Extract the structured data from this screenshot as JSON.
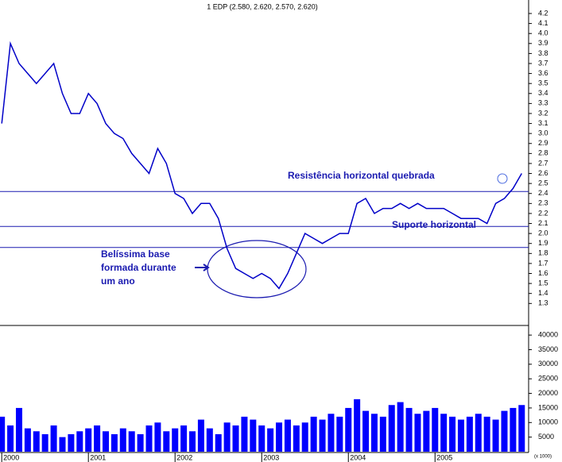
{
  "chart_data": [
    {
      "type": "line",
      "title": "1 EDP (2.580, 2.620, 2.570, 2.620)",
      "color": "#0000c8",
      "x": [
        2000.0,
        2000.1,
        2000.2,
        2000.3,
        2000.4,
        2000.5,
        2000.6,
        2000.7,
        2000.8,
        2000.9,
        2001.0,
        2001.1,
        2001.2,
        2001.3,
        2001.4,
        2001.5,
        2001.6,
        2001.7,
        2001.8,
        2001.9,
        2002.0,
        2002.1,
        2002.2,
        2002.3,
        2002.4,
        2002.5,
        2002.6,
        2002.7,
        2002.8,
        2002.9,
        2003.0,
        2003.1,
        2003.2,
        2003.3,
        2003.4,
        2003.5,
        2003.6,
        2003.7,
        2003.8,
        2003.9,
        2004.0,
        2004.1,
        2004.2,
        2004.3,
        2004.4,
        2004.5,
        2004.6,
        2004.7,
        2004.8,
        2004.9,
        2005.0,
        2005.1,
        2005.2,
        2005.3,
        2005.4,
        2005.5,
        2005.6,
        2005.7,
        2005.8,
        2005.9,
        2006.0
      ],
      "values": [
        3.1,
        3.9,
        3.7,
        3.6,
        3.5,
        3.6,
        3.7,
        3.4,
        3.2,
        3.2,
        3.4,
        3.3,
        3.1,
        3.0,
        2.95,
        2.8,
        2.7,
        2.6,
        2.85,
        2.7,
        2.4,
        2.35,
        2.2,
        2.3,
        2.3,
        2.15,
        1.85,
        1.65,
        1.6,
        1.55,
        1.6,
        1.55,
        1.45,
        1.6,
        1.8,
        2.0,
        1.95,
        1.9,
        1.95,
        2.0,
        2.0,
        2.3,
        2.35,
        2.2,
        2.25,
        2.25,
        2.3,
        2.25,
        2.3,
        2.25,
        2.25,
        2.25,
        2.2,
        2.15,
        2.15,
        2.15,
        2.1,
        2.3,
        2.35,
        2.45,
        2.6
      ],
      "xlim": [
        1999.98,
        2006.08
      ],
      "xticks": [
        2000,
        2001,
        2002,
        2003,
        2004,
        2005
      ],
      "ylim": [
        1.08,
        4.335
      ],
      "yticks": [
        1.3,
        1.4,
        1.5,
        1.6,
        1.7,
        1.8,
        1.9,
        {
          "value": 2,
          "label": "2.0"
        },
        2.1,
        2.2,
        2.3,
        2.4,
        2.5,
        2.6,
        2.7,
        2.8,
        2.9,
        {
          "value": 3,
          "label": "3.0"
        },
        3.1,
        3.2,
        3.3,
        3.4,
        3.5,
        3.6,
        3.7,
        3.8,
        3.9,
        {
          "value": 4,
          "label": "4.0"
        },
        4.1,
        4.2
      ],
      "levels": [
        2.42,
        2.07,
        1.86
      ],
      "annotations": [
        "Resistência horizontal quebrada",
        "Suporte horizontal",
        "Belíssima base",
        "formada durante",
        "um ano"
      ]
    },
    {
      "type": "bar",
      "color": "#0000ff",
      "y_unit_label": "(x 1000)",
      "x": [
        2000.0,
        2000.1,
        2000.2,
        2000.3,
        2000.4,
        2000.5,
        2000.6,
        2000.7,
        2000.8,
        2000.9,
        2001.0,
        2001.1,
        2001.2,
        2001.3,
        2001.4,
        2001.5,
        2001.6,
        2001.7,
        2001.8,
        2001.9,
        2002.0,
        2002.1,
        2002.2,
        2002.3,
        2002.4,
        2002.5,
        2002.6,
        2002.7,
        2002.8,
        2002.9,
        2003.0,
        2003.1,
        2003.2,
        2003.3,
        2003.4,
        2003.5,
        2003.6,
        2003.7,
        2003.8,
        2003.9,
        2004.0,
        2004.1,
        2004.2,
        2004.3,
        2004.4,
        2004.5,
        2004.6,
        2004.7,
        2004.8,
        2004.9,
        2005.0,
        2005.1,
        2005.2,
        2005.3,
        2005.4,
        2005.5,
        2005.6,
        2005.7,
        2005.8,
        2005.9,
        2006.0
      ],
      "values": [
        12000,
        9000,
        15000,
        8000,
        7000,
        6000,
        9000,
        5000,
        6000,
        7000,
        8000,
        9000,
        7000,
        6000,
        8000,
        7000,
        6000,
        9000,
        10000,
        7000,
        8000,
        9000,
        7000,
        11000,
        8000,
        6000,
        10000,
        9000,
        12000,
        11000,
        9000,
        8000,
        10000,
        11000,
        9000,
        10000,
        12000,
        11000,
        13000,
        12000,
        15000,
        18000,
        14000,
        13000,
        12000,
        16000,
        17000,
        15000,
        13000,
        14000,
        15000,
        13000,
        12000,
        11000,
        12000,
        13000,
        12000,
        11000,
        14000,
        15000,
        16000
      ],
      "xlim": [
        1999.98,
        2006.08
      ],
      "ylim": [
        0,
        43300
      ],
      "yticks": [
        5000,
        10000,
        15000,
        20000,
        25000,
        30000,
        35000,
        40000
      ]
    }
  ]
}
